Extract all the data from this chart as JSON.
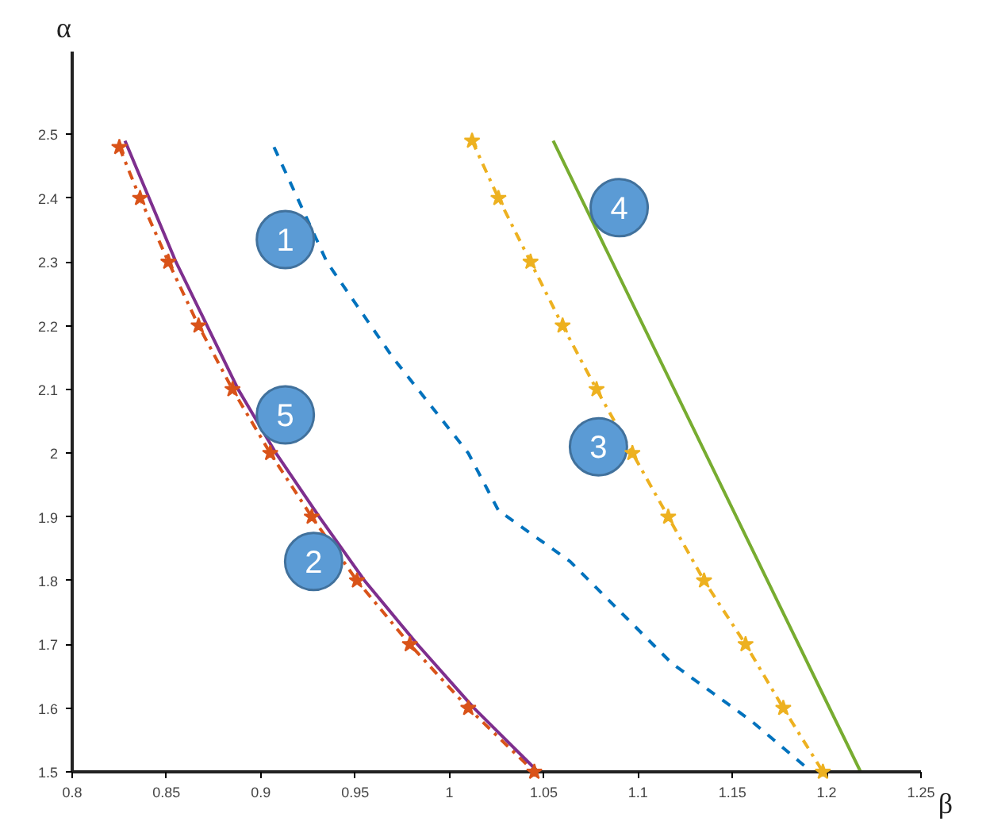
{
  "chart_data": {
    "type": "line",
    "xlabel": "β",
    "ylabel": "α",
    "xlim": [
      0.8,
      1.25
    ],
    "ylim": [
      1.5,
      2.63
    ],
    "xticks": [
      0.8,
      0.85,
      0.9,
      0.95,
      1,
      1.05,
      1.1,
      1.15,
      1.2,
      1.25
    ],
    "yticks": [
      1.5,
      1.6,
      1.7,
      1.8,
      1.9,
      2,
      2.1,
      2.2,
      2.3,
      2.4,
      2.5
    ],
    "grid": false,
    "series": [
      {
        "color": "#0072bd",
        "line_style": "dashed",
        "marker": "none",
        "x": [
          0.907,
          0.935,
          0.97,
          1.01,
          1.026,
          1.064,
          1.118,
          1.16,
          1.192
        ],
        "values": [
          2.48,
          2.3,
          2.15,
          2.0,
          1.91,
          1.83,
          1.67,
          1.58,
          1.5
        ]
      },
      {
        "color": "#d95319",
        "line_style": "dashdot",
        "marker": "star",
        "x": [
          0.825,
          0.836,
          0.851,
          0.867,
          0.885,
          0.905,
          0.927,
          0.951,
          0.979,
          1.01,
          1.045
        ],
        "values": [
          2.48,
          2.4,
          2.3,
          2.2,
          2.1,
          2.0,
          1.9,
          1.8,
          1.7,
          1.6,
          1.5
        ]
      },
      {
        "color": "#edb120",
        "line_style": "dashdot",
        "marker": "star",
        "x": [
          1.012,
          1.026,
          1.043,
          1.06,
          1.078,
          1.097,
          1.116,
          1.135,
          1.157,
          1.177,
          1.198
        ],
        "values": [
          2.49,
          2.4,
          2.3,
          2.2,
          2.1,
          2.0,
          1.9,
          1.8,
          1.7,
          1.6,
          1.5
        ]
      },
      {
        "color": "#77ac30",
        "line_style": "solid",
        "marker": "none",
        "x": [
          1.055,
          1.218
        ],
        "values": [
          2.49,
          1.5
        ]
      },
      {
        "color": "#7e2f8e",
        "line_style": "solid",
        "marker": "none",
        "x": [
          0.828,
          0.855,
          0.888,
          0.908,
          0.931,
          0.955,
          0.983,
          1.013,
          1.047
        ],
        "values": [
          2.49,
          2.3,
          2.1,
          2.0,
          1.9,
          1.8,
          1.7,
          1.6,
          1.5
        ]
      }
    ],
    "annotations": [
      {
        "text": "1",
        "x": 0.913,
        "y": 2.335
      },
      {
        "text": "2",
        "x": 0.928,
        "y": 1.83
      },
      {
        "text": "3",
        "x": 1.079,
        "y": 2.01
      },
      {
        "text": "4",
        "x": 1.09,
        "y": 2.385
      },
      {
        "text": "5",
        "x": 0.913,
        "y": 2.06
      }
    ]
  }
}
